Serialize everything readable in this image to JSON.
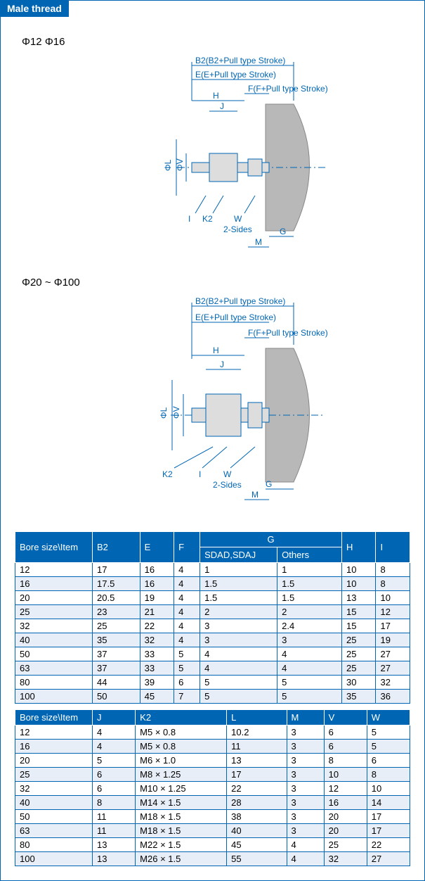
{
  "badge": "Male thread",
  "size_label_1": "Φ12  Φ16",
  "size_label_2": "Φ20 ~ Φ100",
  "diagram": {
    "dim_B2": "B2(B2+Pull type Stroke)",
    "dim_E": "E(E+Pull type Stroke)",
    "dim_F": "F(F+Pull type Stroke)",
    "dim_H": "H",
    "dim_J": "J",
    "dim_I": "I",
    "dim_K2": "K2",
    "dim_W": "W",
    "dim_2sides": "2-Sides",
    "dim_G": "G",
    "dim_M": "M",
    "dim_L": "ΦL",
    "dim_V": "ΦV",
    "colors": {
      "line": "#0066b3",
      "body_fill": "#b8b8b8",
      "body_stroke": "#888"
    }
  },
  "table1": {
    "header_bore": "Bore size\\Item",
    "cols": [
      "B2",
      "E",
      "F"
    ],
    "g_label": "G",
    "g_sub1": "SDAD,SDAJ",
    "g_sub2": "Others",
    "cols2": [
      "H",
      "I"
    ],
    "rows": [
      [
        "12",
        "17",
        "16",
        "4",
        "1",
        "1",
        "10",
        "8"
      ],
      [
        "16",
        "17.5",
        "16",
        "4",
        "1.5",
        "1.5",
        "10",
        "8"
      ],
      [
        "20",
        "20.5",
        "19",
        "4",
        "1.5",
        "1.5",
        "13",
        "10"
      ],
      [
        "25",
        "23",
        "21",
        "4",
        "2",
        "2",
        "15",
        "12"
      ],
      [
        "32",
        "25",
        "22",
        "4",
        "3",
        "2.4",
        "15",
        "17"
      ],
      [
        "40",
        "35",
        "32",
        "4",
        "3",
        "3",
        "25",
        "19"
      ],
      [
        "50",
        "37",
        "33",
        "5",
        "4",
        "4",
        "25",
        "27"
      ],
      [
        "63",
        "37",
        "33",
        "5",
        "4",
        "4",
        "25",
        "27"
      ],
      [
        "80",
        "44",
        "39",
        "6",
        "5",
        "5",
        "30",
        "32"
      ],
      [
        "100",
        "50",
        "45",
        "7",
        "5",
        "5",
        "35",
        "36"
      ]
    ]
  },
  "table2": {
    "header_bore": "Bore size\\Item",
    "cols": [
      "J",
      "K2",
      "L",
      "M",
      "V",
      "W"
    ],
    "rows": [
      [
        "12",
        "4",
        "M5 × 0.8",
        "10.2",
        "3",
        "6",
        "5"
      ],
      [
        "16",
        "4",
        "M5 × 0.8",
        "11",
        "3",
        "6",
        "5"
      ],
      [
        "20",
        "5",
        "M6 × 1.0",
        "13",
        "3",
        "8",
        "6"
      ],
      [
        "25",
        "6",
        "M8 × 1.25",
        "17",
        "3",
        "10",
        "8"
      ],
      [
        "32",
        "6",
        "M10 × 1.25",
        "22",
        "3",
        "12",
        "10"
      ],
      [
        "40",
        "8",
        "M14 × 1.5",
        "28",
        "3",
        "16",
        "14"
      ],
      [
        "50",
        "11",
        "M18 × 1.5",
        "38",
        "3",
        "20",
        "17"
      ],
      [
        "63",
        "11",
        "M18 × 1.5",
        "40",
        "3",
        "20",
        "17"
      ],
      [
        "80",
        "13",
        "M22 × 1.5",
        "45",
        "4",
        "25",
        "22"
      ],
      [
        "100",
        "13",
        "M26 × 1.5",
        "55",
        "4",
        "32",
        "27"
      ]
    ]
  }
}
